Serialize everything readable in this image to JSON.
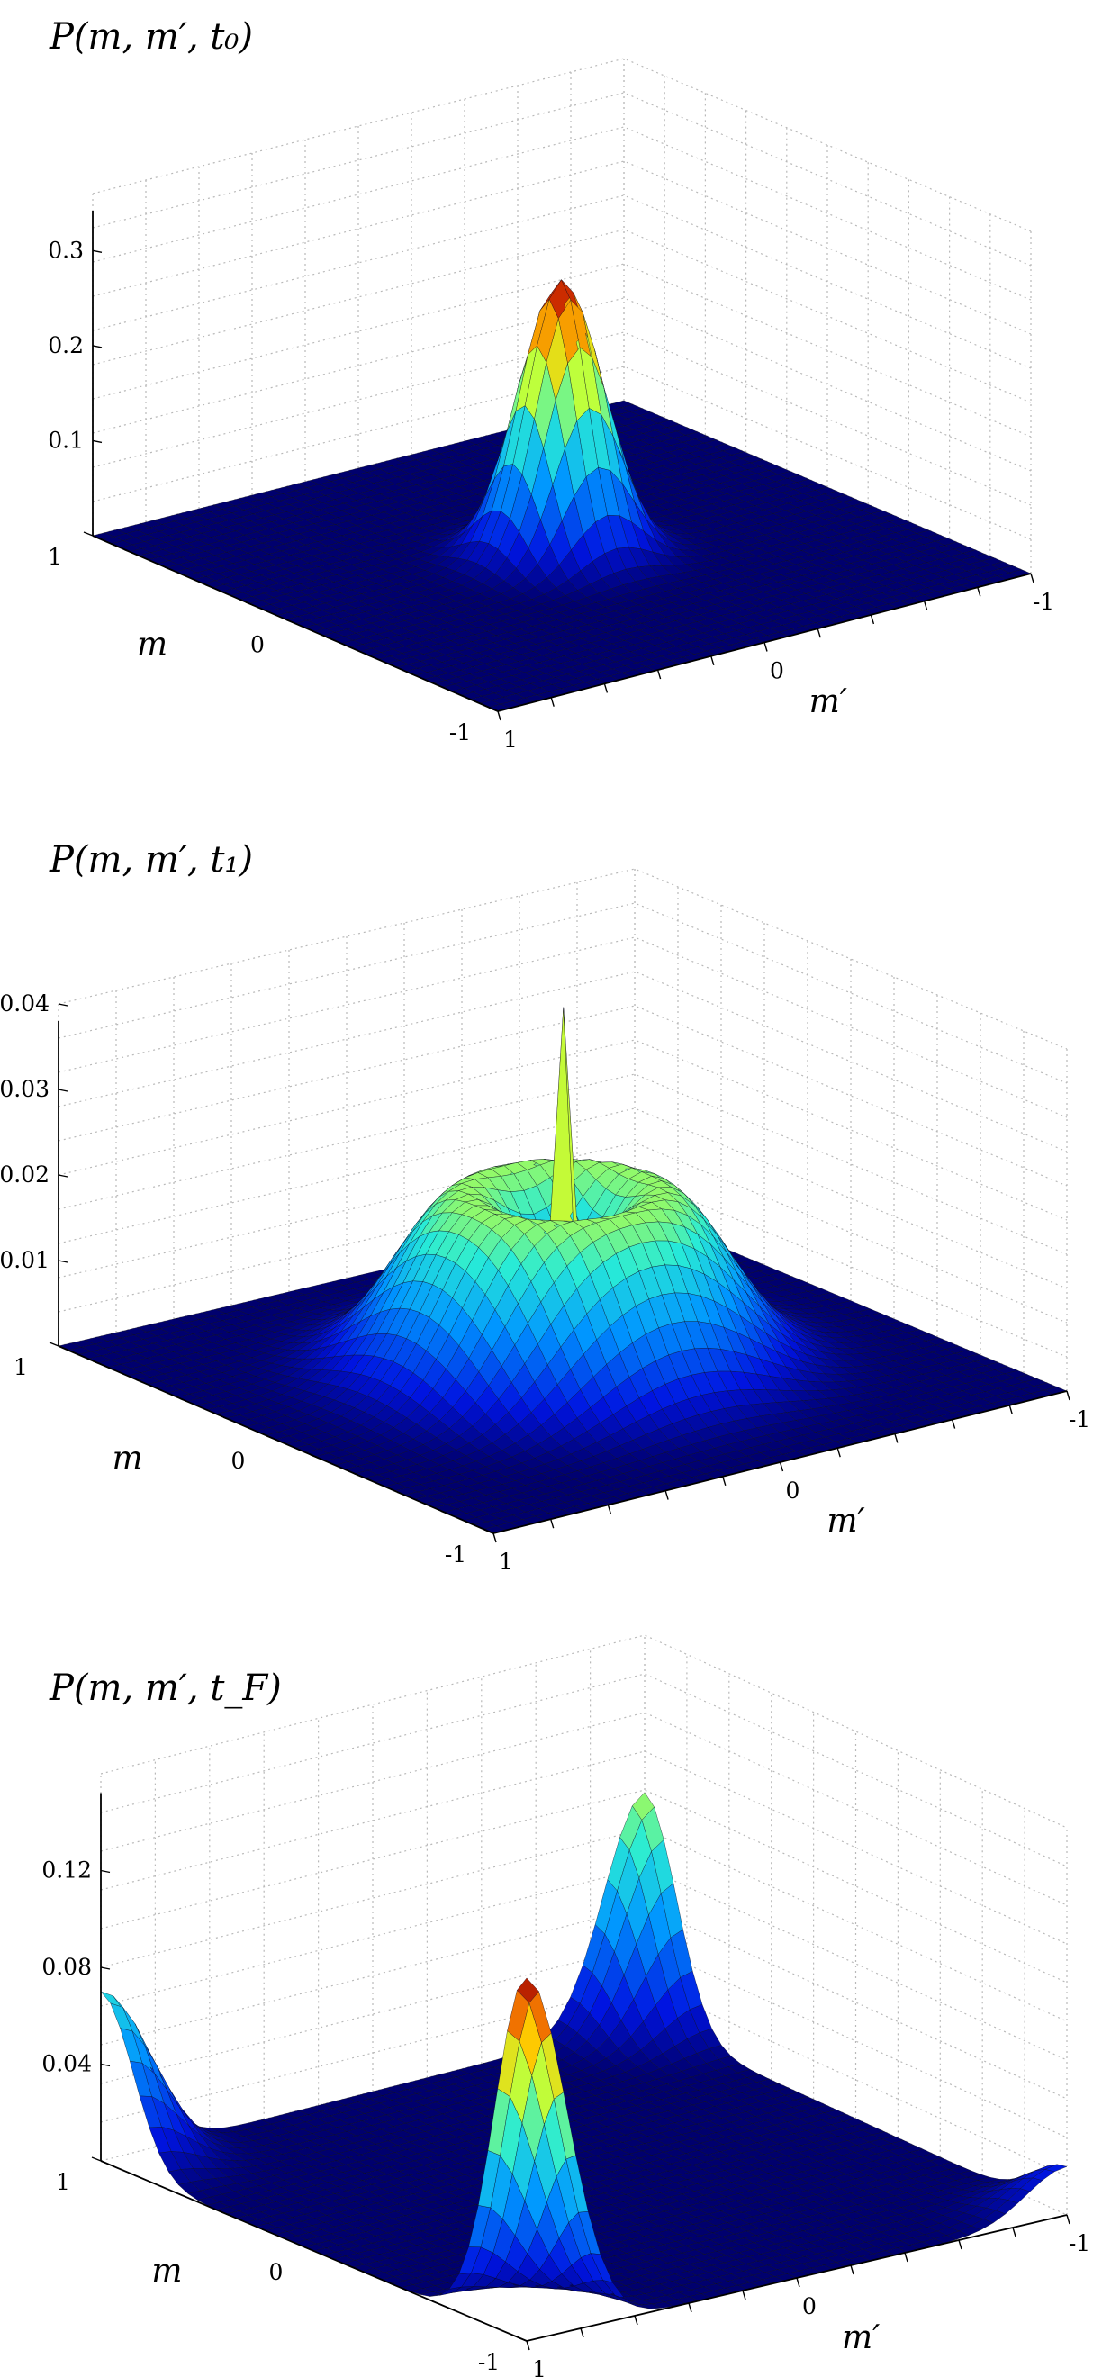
{
  "figure": {
    "panels": [
      {
        "title": "P(m, m′, t₀)"
      },
      {
        "title": "P(m, m′, t₁)"
      },
      {
        "title": "P(m, m′, t_F)"
      }
    ]
  },
  "chart_data": [
    {
      "type": "surface",
      "title": "P(m, m′, t₀)",
      "xlabel": "m′",
      "ylabel": "m",
      "x_ticks": [
        "1",
        "0",
        "-1"
      ],
      "y_ticks": [
        "1",
        "0",
        "-1"
      ],
      "z_ticks": [
        "0.1",
        "0.2",
        "0.3"
      ],
      "xlim": [
        1,
        -1
      ],
      "ylim": [
        1,
        -1
      ],
      "zlim": [
        0,
        0.3
      ],
      "grid": true,
      "colormap": "jet",
      "components": [
        {
          "m": 0,
          "m_prime": 0,
          "peak": 0.29,
          "width": 0.13
        }
      ]
    },
    {
      "type": "surface",
      "title": "P(m, m′, t₁)",
      "xlabel": "m′",
      "ylabel": "m",
      "x_ticks": [
        "1",
        "0",
        "-1"
      ],
      "y_ticks": [
        "1",
        "0",
        "-1"
      ],
      "z_ticks": [
        "0.01",
        "0.02",
        "0.03",
        "0.04"
      ],
      "xlim": [
        1,
        -1
      ],
      "ylim": [
        1,
        -1
      ],
      "zlim": [
        0,
        0.04
      ],
      "grid": true,
      "colormap": "jet",
      "components": [
        {
          "shape": "ring",
          "m": 0,
          "m_prime": 0,
          "radius": 0.27,
          "peak": 0.021,
          "width": 0.2
        },
        {
          "shape": "spike",
          "m": 0,
          "m_prime": 0,
          "peak": 0.034,
          "width": 0.025
        }
      ]
    },
    {
      "type": "surface",
      "title": "P(m, m′, t_F)",
      "xlabel": "m′",
      "ylabel": "m",
      "x_ticks": [
        "1",
        "0",
        "-1"
      ],
      "y_ticks": [
        "1",
        "0",
        "-1"
      ],
      "z_ticks": [
        "0.04",
        "0.08",
        "0.12"
      ],
      "xlim": [
        1,
        -1
      ],
      "ylim": [
        1,
        -1
      ],
      "zlim": [
        0,
        0.14
      ],
      "grid": true,
      "colormap": "jet",
      "components": [
        {
          "m": -1,
          "m_prime": 1,
          "peak": 0.15,
          "width": 0.15
        },
        {
          "m": 1,
          "m_prime": -1,
          "peak": 0.095,
          "width": 0.15
        },
        {
          "m": 1,
          "m_prime": 1,
          "peak": 0.07,
          "width": 0.15
        },
        {
          "m": -1,
          "m_prime": -1,
          "peak": 0.02,
          "width": 0.15
        }
      ]
    }
  ]
}
